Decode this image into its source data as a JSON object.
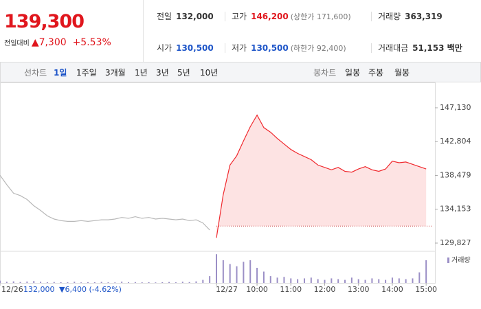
{
  "quote": {
    "price": "139,300",
    "change_label": "전일대비",
    "change": "▲7,300",
    "change_rate": "+5.53%"
  },
  "info": [
    [
      {
        "label": "전일",
        "value": "132,000"
      },
      {
        "label": "고가",
        "value": "146,200",
        "note": "(상한가 171,600)"
      },
      {
        "label": "거래량",
        "value": "363,319"
      }
    ],
    [
      {
        "label": "시가",
        "value": "130,500"
      },
      {
        "label": "저가",
        "value": "130,500",
        "note": "(하한가 92,400)"
      },
      {
        "label": "거래대금",
        "value": "51,153 백만"
      }
    ]
  ],
  "tabs": {
    "line_label": "선차트",
    "line_periods": [
      "1일",
      "1주일",
      "3개월",
      "1년",
      "3년",
      "5년",
      "10년"
    ],
    "candle_label": "봉차트",
    "candle_periods": [
      "일봉",
      "주봉",
      "월봉"
    ]
  },
  "chart_data": {
    "type": "line",
    "categories": [
      "12/26",
      null,
      null,
      null,
      null,
      null,
      null,
      null,
      null,
      null,
      null,
      null,
      null,
      null,
      null,
      null,
      null,
      null,
      null,
      null,
      null,
      null,
      null,
      null,
      null,
      null,
      null,
      null,
      null,
      null,
      null,
      null,
      "12/27",
      null,
      null,
      null,
      null,
      null,
      "10:00",
      null,
      null,
      null,
      null,
      "11:00",
      null,
      null,
      null,
      null,
      "12:00",
      null,
      null,
      null,
      null,
      "13:00",
      null,
      null,
      null,
      null,
      "14:00",
      null,
      null,
      null,
      null,
      "15:00"
    ],
    "series": [
      {
        "color": "#b8b8b8",
        "values": [
          138500,
          137300,
          136200,
          135900,
          135400,
          134600,
          134000,
          133300,
          132900,
          132700,
          132600,
          132600,
          132700,
          132600,
          132700,
          132800,
          132800,
          132900,
          133100,
          133000,
          133200,
          133000,
          133100,
          132900,
          133000,
          132900,
          132800,
          132900,
          132700,
          132800,
          132400,
          131500,
          null,
          null,
          null,
          null,
          null,
          null,
          null,
          null,
          null,
          null,
          null,
          null,
          null,
          null,
          null,
          null,
          null,
          null,
          null,
          null,
          null,
          null,
          null,
          null,
          null,
          null,
          null,
          null,
          null,
          null,
          null,
          null
        ]
      },
      {
        "color": "#f0282d",
        "fill": "#fde3e3",
        "values": [
          null,
          null,
          null,
          null,
          null,
          null,
          null,
          null,
          null,
          null,
          null,
          null,
          null,
          null,
          null,
          null,
          null,
          null,
          null,
          null,
          null,
          null,
          null,
          null,
          null,
          null,
          null,
          null,
          null,
          null,
          null,
          null,
          130500,
          136000,
          139800,
          141000,
          142900,
          144700,
          146200,
          144600,
          144000,
          143200,
          142500,
          141800,
          141300,
          140900,
          140500,
          139800,
          139500,
          139200,
          139500,
          139000,
          138900,
          139300,
          139600,
          139200,
          139000,
          139300,
          140300,
          140100,
          140200,
          139900,
          139600,
          139300
        ]
      }
    ],
    "reference": {
      "value": 132000,
      "label": "132,000"
    },
    "prev_day_change": "▼6,400 (-4.62%)",
    "ylim": [
      128860,
      148620
    ],
    "yticks": [
      {
        "value": 147130,
        "label": "147,130"
      },
      {
        "value": 142804,
        "label": "142,804"
      },
      {
        "value": 138479,
        "label": "138,479"
      },
      {
        "value": 134153,
        "label": "134,153"
      },
      {
        "value": 129827,
        "label": "129,827"
      }
    ],
    "volume": {
      "name": "거래량",
      "color": "#9b8fc6",
      "ylim": [
        0,
        40000
      ],
      "values": [
        3000,
        1500,
        2000,
        1200,
        1800,
        2500,
        1500,
        1000,
        1200,
        900,
        800,
        1500,
        700,
        1000,
        900,
        1300,
        800,
        700,
        1600,
        900,
        1100,
        800,
        1000,
        700,
        900,
        1200,
        800,
        1500,
        1100,
        2000,
        4000,
        9000,
        38000,
        30000,
        25000,
        22000,
        28000,
        30000,
        20000,
        15000,
        9000,
        7000,
        8000,
        6000,
        5000,
        6000,
        7000,
        5000,
        4000,
        6000,
        5000,
        4000,
        7000,
        5000,
        4000,
        6000,
        5000,
        4000,
        7000,
        6000,
        5000,
        6000,
        14000,
        30000
      ]
    }
  }
}
